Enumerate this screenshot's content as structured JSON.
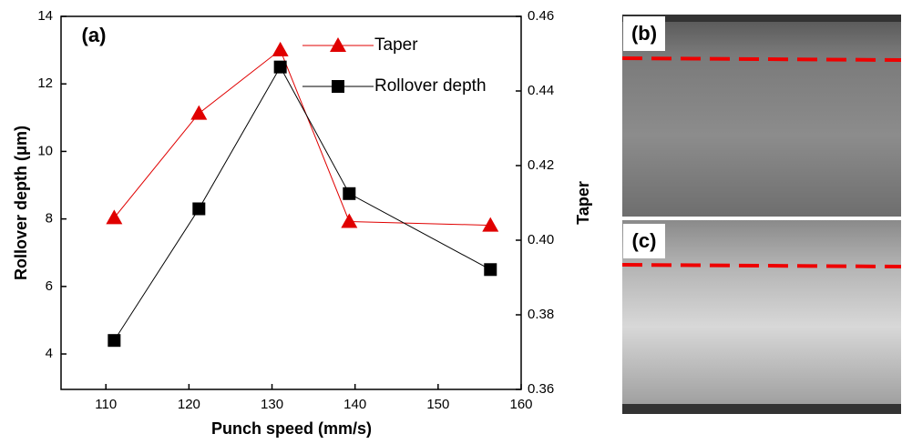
{
  "chart_data": {
    "type": "line",
    "annotations": [
      "(a)"
    ],
    "x_label": "Punch speed (mm/s)",
    "y_label": "Rollover depth (μm)",
    "y2_label": "Taper",
    "xlim": [
      104.6,
      160
    ],
    "xticks": [
      110,
      120,
      130,
      140,
      150,
      160
    ],
    "ylim": [
      2.95,
      14
    ],
    "yticks": [
      4,
      6,
      8,
      10,
      12,
      14
    ],
    "y2lim": [
      0.36,
      0.46
    ],
    "y2ticks": [
      0.36,
      0.38,
      {
        "value": 0.4,
        "label": "0.40"
      },
      0.42,
      0.44,
      0.46
    ],
    "series": [
      {
        "name": "Taper",
        "color": "#e00000",
        "marker": "triangle",
        "axis": "y2",
        "x": [
          111,
          121.2,
          131,
          139.3,
          156.3
        ],
        "values": [
          0.406,
          0.434,
          0.451,
          0.405,
          0.404
        ]
      },
      {
        "name": "Rollover depth",
        "color": "#000000",
        "marker": "square",
        "x": [
          111,
          121.2,
          131,
          139.3,
          156.3
        ],
        "values": [
          4.4,
          8.3,
          12.5,
          8.75,
          6.5
        ]
      }
    ]
  },
  "image_labels": [
    "(b)",
    "(c)"
  ]
}
